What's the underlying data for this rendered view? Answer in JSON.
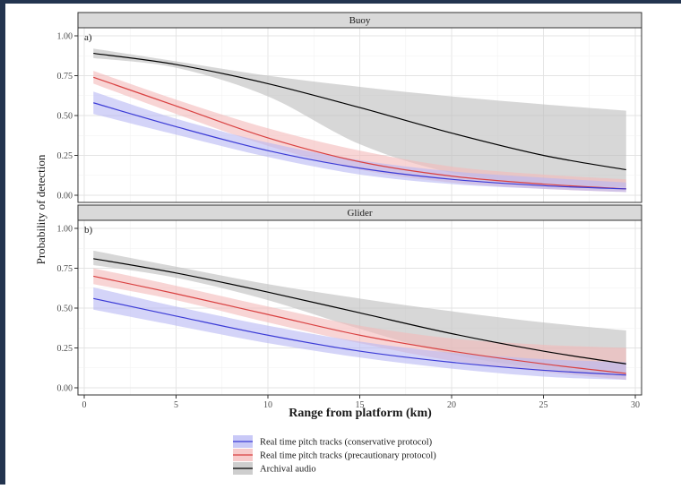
{
  "chart_data": {
    "type": "line",
    "xlabel": "Range from platform (km)",
    "ylabel": "Probability of detection",
    "xlim": [
      0,
      30
    ],
    "ylim": [
      0,
      1
    ],
    "x_ticks": [
      "0",
      "5",
      "10",
      "15",
      "20",
      "25",
      "30"
    ],
    "y_ticks": [
      "0.00",
      "0.25",
      "0.50",
      "0.75",
      "1.00"
    ],
    "grid": true,
    "legend_position": "bottom",
    "legend": [
      {
        "name": "Real time pitch tracks (conservative protocol)",
        "color": "#3b3bd6",
        "fill": "#b7b7f4"
      },
      {
        "name": "Real time pitch tracks (precautionary protocol)",
        "color": "#d94141",
        "fill": "#f4b9b9"
      },
      {
        "name": "Archival audio",
        "color": "#000000",
        "fill": "#bdbdbd"
      }
    ],
    "panels": [
      {
        "strip": "Buoy",
        "tag": "a)",
        "x": [
          0.5,
          5,
          10,
          15,
          20,
          25,
          29.5
        ],
        "series": [
          {
            "name": "Archival audio",
            "values": [
              0.89,
              0.82,
              0.7,
              0.55,
              0.39,
              0.25,
              0.16
            ],
            "lower": [
              0.86,
              0.8,
              0.62,
              0.32,
              0.14,
              0.07,
              0.05
            ],
            "upper": [
              0.92,
              0.84,
              0.75,
              0.68,
              0.62,
              0.57,
              0.53
            ]
          },
          {
            "name": "Real time pitch tracks (precautionary protocol)",
            "values": [
              0.74,
              0.56,
              0.36,
              0.21,
              0.12,
              0.07,
              0.04
            ],
            "lower": [
              0.7,
              0.51,
              0.31,
              0.16,
              0.08,
              0.04,
              0.02
            ],
            "upper": [
              0.78,
              0.6,
              0.42,
              0.28,
              0.18,
              0.13,
              0.1
            ]
          },
          {
            "name": "Real time pitch tracks (conservative protocol)",
            "values": [
              0.58,
              0.43,
              0.28,
              0.17,
              0.1,
              0.06,
              0.04
            ],
            "lower": [
              0.51,
              0.38,
              0.24,
              0.13,
              0.07,
              0.04,
              0.02
            ],
            "upper": [
              0.65,
              0.48,
              0.33,
              0.22,
              0.15,
              0.11,
              0.08
            ]
          }
        ]
      },
      {
        "strip": "Glider",
        "tag": "b)",
        "x": [
          0.5,
          5,
          10,
          15,
          20,
          25,
          29.5
        ],
        "series": [
          {
            "name": "Archival audio",
            "values": [
              0.81,
              0.72,
              0.6,
              0.47,
              0.34,
              0.23,
              0.15
            ],
            "lower": [
              0.77,
              0.69,
              0.55,
              0.37,
              0.21,
              0.12,
              0.07
            ],
            "upper": [
              0.86,
              0.76,
              0.65,
              0.56,
              0.48,
              0.41,
              0.36
            ]
          },
          {
            "name": "Real time pitch tracks (precautionary protocol)",
            "values": [
              0.7,
              0.59,
              0.46,
              0.33,
              0.23,
              0.15,
              0.09
            ],
            "lower": [
              0.65,
              0.55,
              0.41,
              0.28,
              0.17,
              0.1,
              0.05
            ],
            "upper": [
              0.75,
              0.64,
              0.51,
              0.39,
              0.31,
              0.27,
              0.25
            ]
          },
          {
            "name": "Real time pitch tracks (conservative protocol)",
            "values": [
              0.56,
              0.45,
              0.33,
              0.23,
              0.16,
              0.11,
              0.08
            ],
            "lower": [
              0.49,
              0.39,
              0.28,
              0.19,
              0.12,
              0.07,
              0.05
            ],
            "upper": [
              0.63,
              0.51,
              0.39,
              0.29,
              0.22,
              0.18,
              0.16
            ]
          }
        ]
      }
    ]
  }
}
